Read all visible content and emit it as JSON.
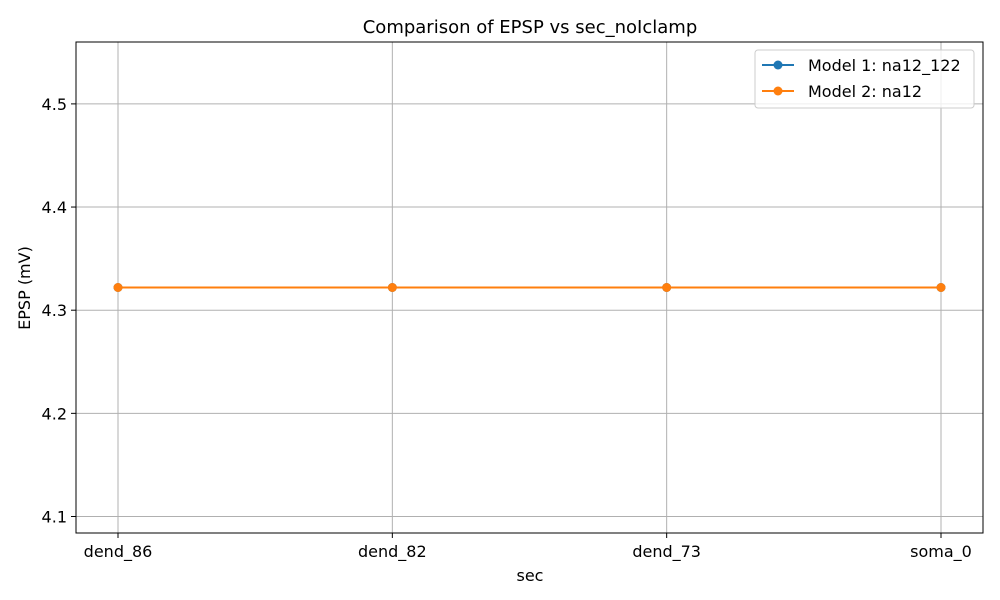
{
  "chart_data": {
    "type": "line",
    "title": "Comparison of EPSP vs sec_noIclamp",
    "xlabel": "sec",
    "ylabel": "EPSP (mV)",
    "categories": [
      "dend_86",
      "dend_82",
      "dend_73",
      "soma_0"
    ],
    "ylim": [
      4.084,
      4.56
    ],
    "yticks": [
      4.1,
      4.2,
      4.3,
      4.4,
      4.5
    ],
    "ytick_labels": [
      "4.1",
      "4.2",
      "4.3",
      "4.4",
      "4.5"
    ],
    "grid": true,
    "legend_position": "top-right",
    "series": [
      {
        "name": "Model 1: na12_122",
        "color": "#1f77b4",
        "marker": "circle",
        "values": [
          4.322,
          4.322,
          4.322,
          4.322
        ]
      },
      {
        "name": "Model 2: na12",
        "color": "#ff7f0e",
        "marker": "circle",
        "values": [
          4.322,
          4.322,
          4.322,
          4.322
        ]
      }
    ]
  }
}
